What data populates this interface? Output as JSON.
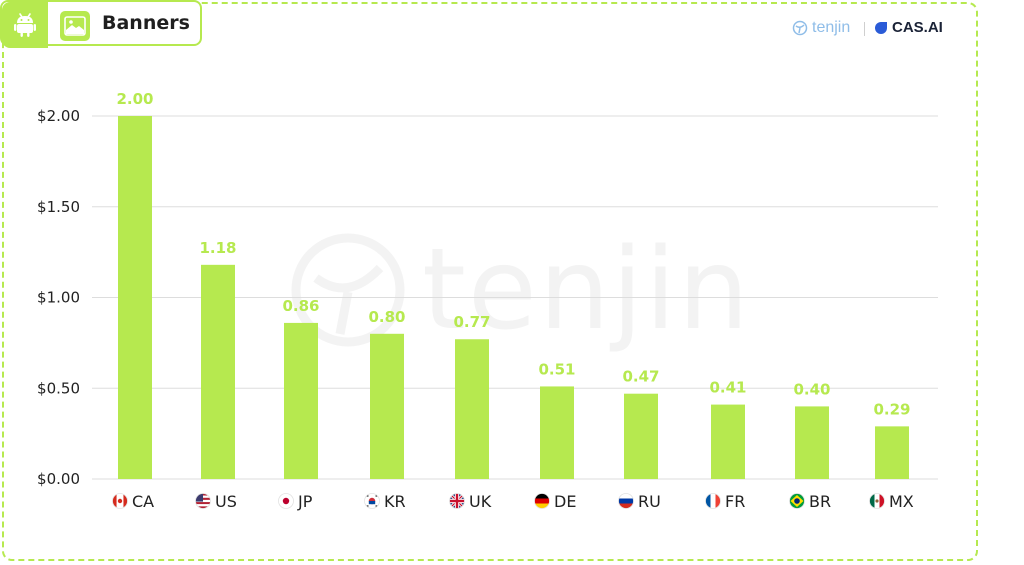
{
  "header": {
    "title": "Banners",
    "platform_icon": "android-icon",
    "format_icon": "banner-image-icon"
  },
  "branding": {
    "tenjin": "tenjin",
    "cas": "CAS.AI",
    "watermark": "tenjin"
  },
  "colors": {
    "accent": "#b6e94f",
    "gridline": "#dddddd",
    "text": "#222222"
  },
  "chart_data": {
    "type": "bar",
    "categories": [
      "CA",
      "US",
      "JP",
      "KR",
      "UK",
      "DE",
      "RU",
      "FR",
      "BR",
      "MX"
    ],
    "country_flags": [
      "flag-ca-icon",
      "flag-us-icon",
      "flag-jp-icon",
      "flag-kr-icon",
      "flag-uk-icon",
      "flag-de-icon",
      "flag-ru-icon",
      "flag-fr-icon",
      "flag-br-icon",
      "flag-mx-icon"
    ],
    "values": [
      2.0,
      1.18,
      0.86,
      0.8,
      0.77,
      0.51,
      0.47,
      0.41,
      0.4,
      0.29
    ],
    "value_labels": [
      "2.00",
      "1.18",
      "0.86",
      "0.80",
      "0.77",
      "0.51",
      "0.47",
      "0.41",
      "0.40",
      "0.29"
    ],
    "yticks": [
      0,
      0.5,
      1.0,
      1.5,
      2.0
    ],
    "ytick_labels": [
      "$0.00",
      "$0.50",
      "$1.00",
      "$1.50",
      "$2.00"
    ],
    "ylim": [
      0,
      2.0
    ],
    "grid": true,
    "legend": "none",
    "title": "",
    "xlabel": "",
    "ylabel": ""
  }
}
